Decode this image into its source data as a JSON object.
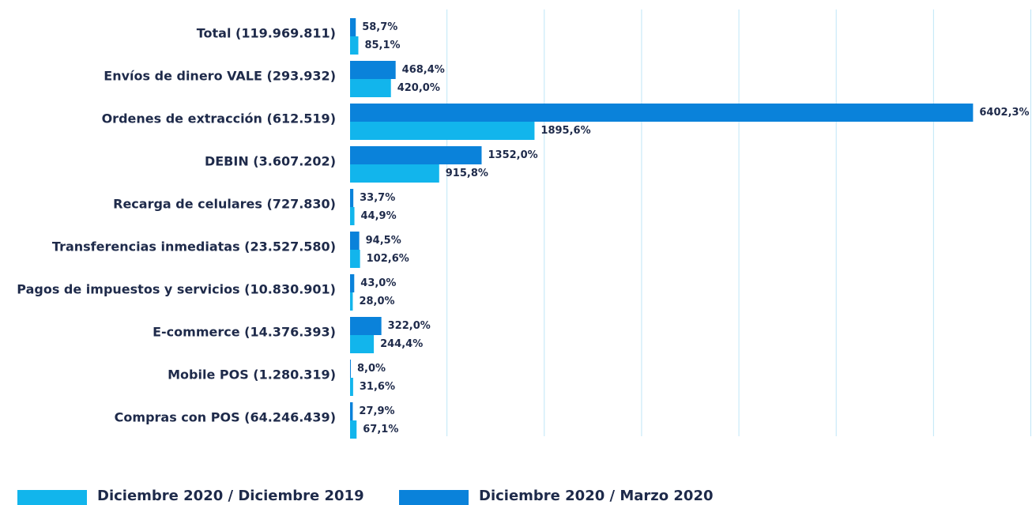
{
  "chart_data": {
    "type": "bar",
    "orientation": "horizontal",
    "categories": [
      "Total (119.969.811)",
      "Envíos de dinero VALE (293.932)",
      "Ordenes de extracción (612.519)",
      "DEBIN (3.607.202)",
      "Recarga de celulares (727.830)",
      "Transferencias inmediatas (23.527.580)",
      "Pagos de impuestos y servicios (10.830.901)",
      "E-commerce (14.376.393)",
      "Mobile POS (1.280.319)",
      "Compras con POS (64.246.439)"
    ],
    "series": [
      {
        "name": "Diciembre 2020 / Diciembre 2019",
        "color": "#12b5ec",
        "values": [
          85.1,
          420.0,
          1895.6,
          915.8,
          44.9,
          102.6,
          28.0,
          244.4,
          31.6,
          67.1
        ],
        "value_labels": [
          "85,1%",
          "420,0%",
          "1895,6%",
          "915,8%",
          "44,9%",
          "102,6%",
          "28,0%",
          "244,4%",
          "31,6%",
          "67,1%"
        ]
      },
      {
        "name": "Diciembre 2020 / Marzo 2020",
        "color": "#0a82da",
        "values": [
          58.7,
          468.4,
          6402.3,
          1352.0,
          33.7,
          94.5,
          43.0,
          322.0,
          8.0,
          27.9
        ],
        "value_labels": [
          "58,7%",
          "468,4%",
          "6402,3%",
          "1352,0%",
          "33,7%",
          "94,5%",
          "43,0%",
          "322,0%",
          "8,0%",
          "27,9%"
        ]
      }
    ],
    "xlim": [
      0,
      7000
    ],
    "xticks": [
      1000,
      2000,
      3000,
      4000,
      5000,
      6000,
      7000
    ],
    "grid": true
  }
}
